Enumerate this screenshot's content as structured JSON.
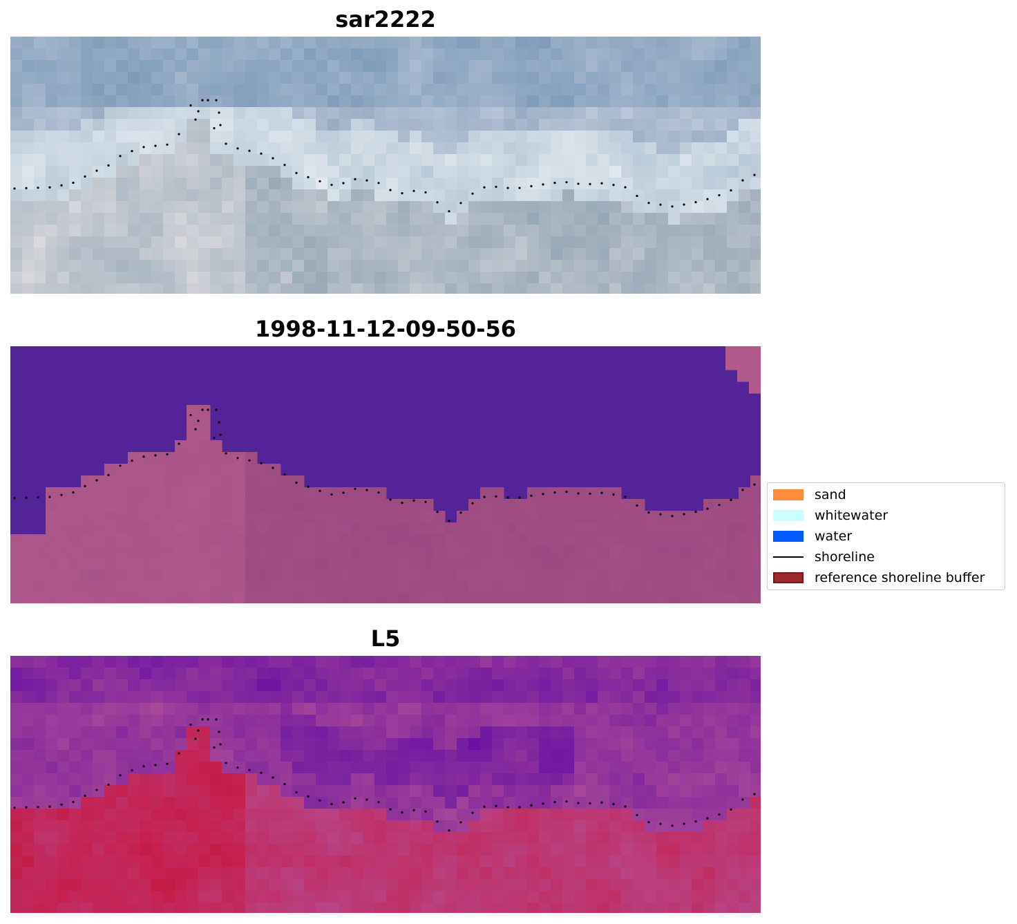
{
  "panels": [
    {
      "title": "sar2222",
      "style": "rgb"
    },
    {
      "title": "1998-11-12-09-50-56",
      "style": "classified"
    },
    {
      "title": "L5",
      "style": "index"
    }
  ],
  "legend": {
    "items": [
      {
        "label": "sand",
        "kind": "patch",
        "color": "#ff8c3c"
      },
      {
        "label": "whitewater",
        "kind": "patch",
        "color": "#c8ffff"
      },
      {
        "label": "water",
        "kind": "patch",
        "color": "#005aff"
      },
      {
        "label": "shoreline",
        "kind": "line",
        "color": "#000000"
      },
      {
        "label": "reference shoreline buffer",
        "kind": "patch",
        "color": "#9b2a2a"
      }
    ]
  },
  "colors": {
    "classified_water": "#532398",
    "classified_land": "#a04e84",
    "shoreline_dots": "#000000"
  }
}
